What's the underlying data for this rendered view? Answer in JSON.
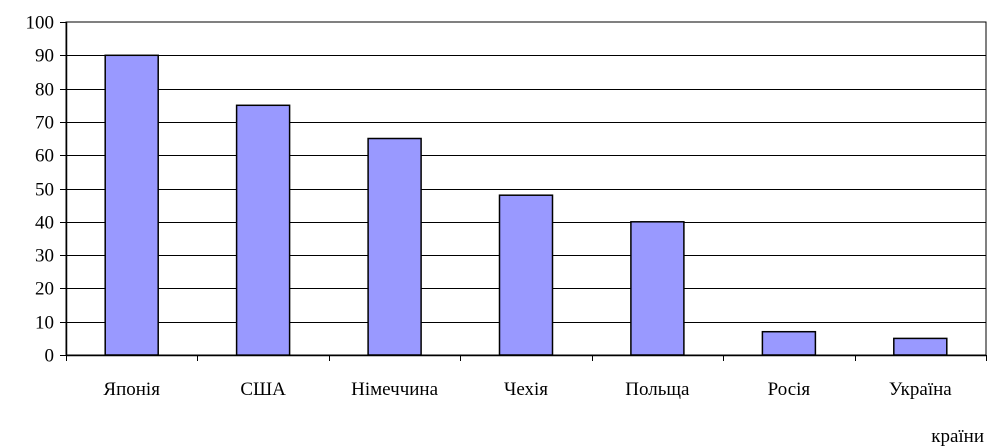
{
  "chart_data": {
    "type": "bar",
    "categories": [
      "Японія",
      "США",
      "Німеччина",
      "Чехія",
      "Польща",
      "Росія",
      "Україна"
    ],
    "values": [
      90,
      75,
      65,
      48,
      40,
      7,
      5
    ],
    "title": "",
    "xlabel": "країни",
    "ylabel": "",
    "ylim": [
      0,
      100
    ],
    "yticks": [
      0,
      10,
      20,
      30,
      40,
      50,
      60,
      70,
      80,
      90,
      100
    ],
    "grid": true,
    "legend": false,
    "colors": {
      "bar_fill": "#9999ff",
      "bar_stroke": "#000000",
      "grid": "#000000",
      "axis": "#000000"
    }
  }
}
